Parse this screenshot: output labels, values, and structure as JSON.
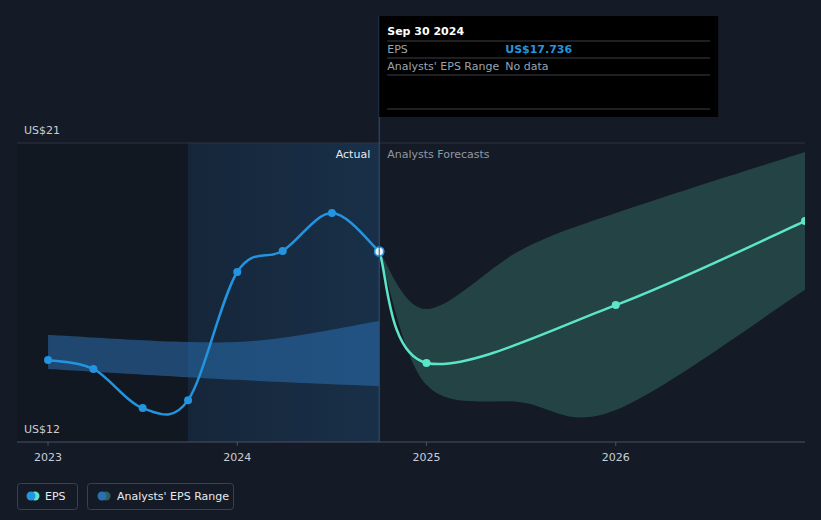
{
  "chart_data": {
    "type": "line",
    "xlim": [
      2022.836,
      2027
    ],
    "xticks": [
      2023,
      2024,
      2025,
      2026
    ],
    "ylim": [
      12,
      21
    ],
    "yticks": [
      {
        "value": 12,
        "label": "US$12"
      },
      {
        "value": 21,
        "label": "US$21"
      }
    ],
    "grid": true,
    "annotations": {
      "actual": "Actual",
      "forecast": "Analysts Forecasts"
    },
    "series": [
      {
        "name": "EPS",
        "color": "#2394df",
        "marker": "circle",
        "x": [
          2023,
          2023.24,
          2023.5,
          2023.74,
          2024,
          2024.24,
          2024.5,
          2024.75
        ],
        "values": [
          14.47,
          14.2,
          13.02,
          13.26,
          17.12,
          17.75,
          18.89,
          17.736
        ]
      },
      {
        "color": "#5ce5c9",
        "marker": "circle",
        "x": [
          2024.75,
          2025,
          2026,
          2027
        ],
        "values": [
          17.736,
          14.38,
          16.12,
          18.65
        ]
      }
    ],
    "ranges": {
      "name": "Analysts' EPS Range",
      "series": [
        {
          "color": "#2a70b0",
          "x": [
            2023,
            2024,
            2024.75
          ],
          "low": [
            14.2,
            13.87,
            13.68
          ],
          "high": [
            15.22,
            15.01,
            15.64
          ]
        },
        {
          "color": "#2f5f5a",
          "x": [
            2024.75,
            2025,
            2025.5,
            2026,
            2027
          ],
          "low": [
            17.736,
            13.72,
            13.2,
            12.96,
            16.58
          ],
          "high": [
            17.736,
            16.0,
            17.78,
            18.89,
            20.73
          ]
        }
      ]
    },
    "tooltip": {
      "x": 2024.75,
      "date": "Sep 30 2024",
      "rows": [
        {
          "label": "EPS",
          "value": "US$17.736"
        },
        {
          "label": "Analysts' EPS Range",
          "value": "No data"
        }
      ]
    }
  }
}
